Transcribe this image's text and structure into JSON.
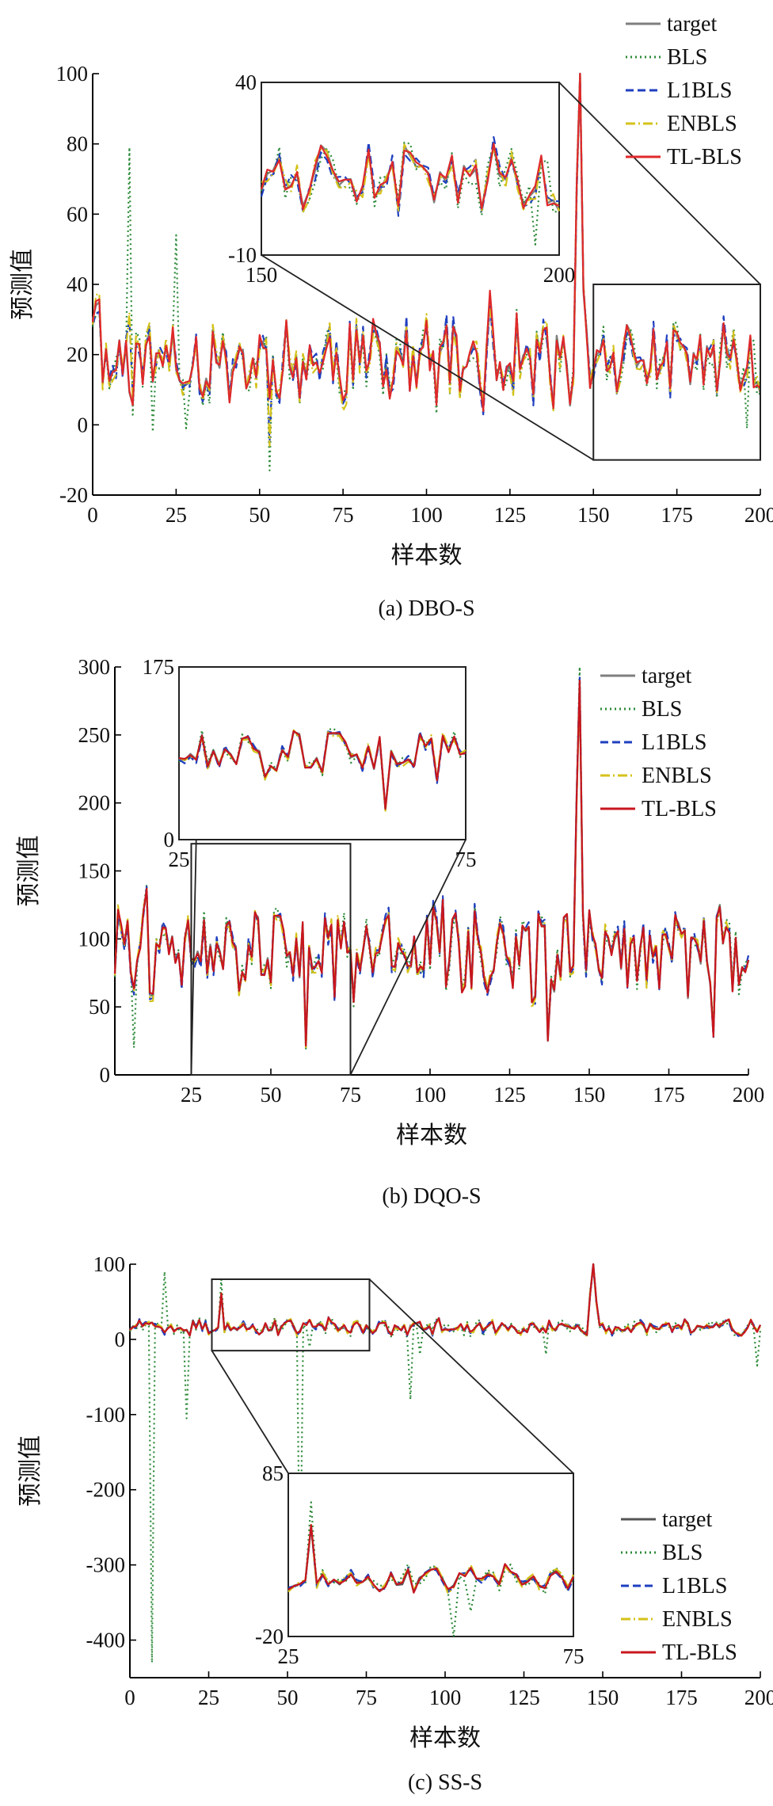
{
  "chart_data": [
    {
      "type": "line",
      "caption": "(a) DBO-S",
      "xlabel": "样本数",
      "ylabel": "预测值",
      "xlim": [
        0,
        200
      ],
      "ylim": [
        -20,
        100
      ],
      "xticks": [
        0,
        25,
        50,
        75,
        100,
        125,
        150,
        175,
        200
      ],
      "yticks": [
        -20,
        0,
        20,
        40,
        60,
        80,
        100
      ],
      "legend_position": "top-right",
      "legend": [
        "target",
        "BLS",
        "L1BLS",
        "ENBLS",
        "TL-BLS"
      ],
      "target_peak": {
        "x": 146,
        "y": 108
      },
      "bls_spikes": [
        {
          "x": 11,
          "y": 79
        },
        {
          "x": 25,
          "y": 54
        },
        {
          "x": 53,
          "y": -13
        }
      ],
      "inset": {
        "xlim": [
          150,
          200
        ],
        "ylim": [
          -10,
          40
        ],
        "xticks": [
          150,
          200
        ],
        "yticks": [
          -10,
          40
        ]
      },
      "series": [
        {
          "name": "target",
          "color": "#7f7f7f"
        },
        {
          "name": "BLS",
          "color": "#2e8b3a"
        },
        {
          "name": "L1BLS",
          "color": "#1f3fbf"
        },
        {
          "name": "ENBLS",
          "color": "#d4c21a"
        },
        {
          "name": "TL-BLS",
          "color": "#e0282a"
        }
      ]
    },
    {
      "type": "line",
      "caption": "(b) DQO-S",
      "xlabel": "样本数",
      "ylabel": "预测值",
      "xlim": [
        1,
        200
      ],
      "ylim": [
        0,
        300
      ],
      "xticks": [
        25,
        50,
        75,
        100,
        125,
        150,
        175,
        200
      ],
      "yticks": [
        0,
        50,
        100,
        150,
        200,
        250,
        300
      ],
      "legend_position": "top-right",
      "legend": [
        "target",
        "BLS",
        "L1BLS",
        "ENBLS",
        "TL-BLS"
      ],
      "target_peak": {
        "x": 146,
        "y": 290
      },
      "inset": {
        "xlim": [
          25,
          75
        ],
        "ylim": [
          0,
          175
        ],
        "xticks": [
          25,
          75
        ],
        "yticks": [
          0,
          175
        ]
      },
      "series": [
        {
          "name": "target",
          "color": "#7f7f7f"
        },
        {
          "name": "BLS",
          "color": "#2e8b3a"
        },
        {
          "name": "L1BLS",
          "color": "#1f3fbf"
        },
        {
          "name": "ENBLS",
          "color": "#d4c21a"
        },
        {
          "name": "TL-BLS",
          "color": "#c8161e"
        }
      ]
    },
    {
      "type": "line",
      "caption": "(c) SS-S",
      "xlabel": "样本数",
      "ylabel": "预测值",
      "xlim": [
        0,
        200
      ],
      "ylim": [
        -450,
        100
      ],
      "xticks": [
        0,
        25,
        50,
        75,
        100,
        125,
        150,
        175,
        200
      ],
      "yticks": [
        -400,
        -300,
        -200,
        -100,
        0,
        100
      ],
      "legend_position": "bottom-right",
      "legend": [
        "target",
        "BLS",
        "L1BLS",
        "ENBLS",
        "TL-BLS"
      ],
      "target_peak": {
        "x": 147,
        "y": 100
      },
      "bls_spikes": [
        {
          "x": 7,
          "y": -430
        },
        {
          "x": 18,
          "y": -105
        },
        {
          "x": 54,
          "y": -345
        },
        {
          "x": 89,
          "y": -80
        }
      ],
      "inset": {
        "xlim": [
          25,
          75
        ],
        "ylim": [
          -20,
          85
        ],
        "xticks": [
          25,
          75
        ],
        "yticks": [
          -20,
          85
        ]
      },
      "series": [
        {
          "name": "target",
          "color": "#555555"
        },
        {
          "name": "BLS",
          "color": "#2e8b3a"
        },
        {
          "name": "L1BLS",
          "color": "#1f3fbf"
        },
        {
          "name": "ENBLS",
          "color": "#d4c21a"
        },
        {
          "name": "TL-BLS",
          "color": "#c8161e"
        }
      ]
    }
  ]
}
